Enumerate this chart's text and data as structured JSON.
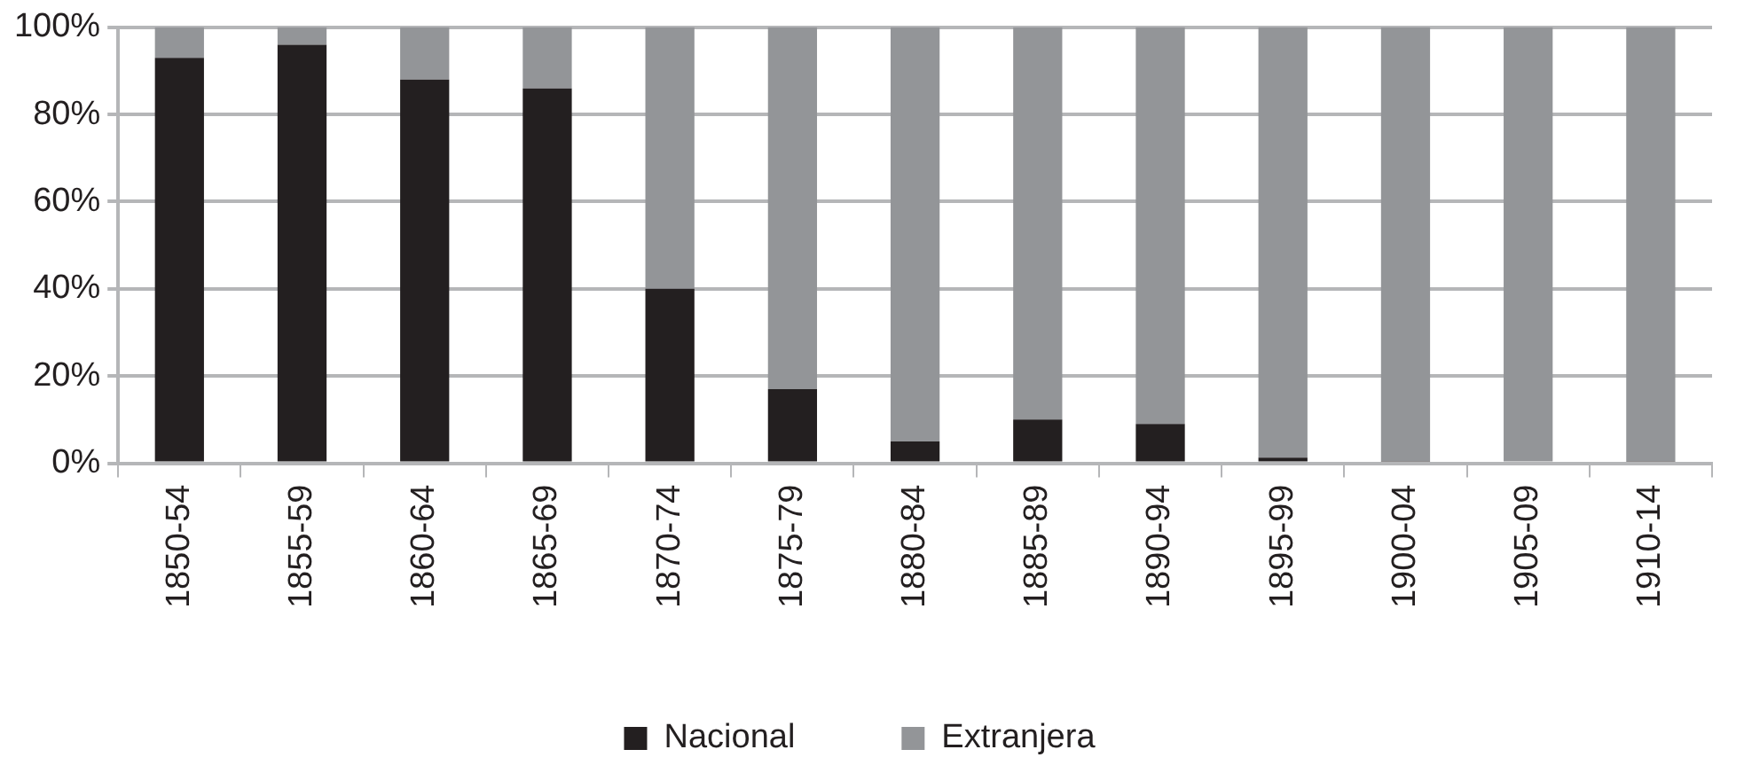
{
  "chart_data": {
    "type": "bar",
    "stacked": true,
    "categories": [
      "1850-54",
      "1855-59",
      "1860-64",
      "1865-69",
      "1870-74",
      "1875-79",
      "1880-84",
      "1885-89",
      "1890-94",
      "1895-99",
      "1900-04",
      "1905-09",
      "1910-14"
    ],
    "series": [
      {
        "name": "Nacional",
        "color": "#231f20",
        "values": [
          93,
          96,
          88,
          86,
          40,
          17,
          5,
          10,
          9,
          1.3,
          0.5,
          0,
          0.5
        ]
      },
      {
        "name": "Extranjera",
        "color": "#939598",
        "values": [
          7,
          4,
          12,
          14,
          60,
          83,
          95,
          90,
          91,
          98.7,
          99.5,
          100,
          99.5
        ]
      }
    ],
    "ylim": [
      0,
      100
    ],
    "yticks": [
      {
        "value": 0,
        "label": "0%"
      },
      {
        "value": 20,
        "label": "20%"
      },
      {
        "value": 40,
        "label": "40%"
      },
      {
        "value": 60,
        "label": "60%"
      },
      {
        "value": 80,
        "label": "80%"
      },
      {
        "value": 100,
        "label": "100%"
      }
    ],
    "grid": "y",
    "legend": "bottom"
  }
}
